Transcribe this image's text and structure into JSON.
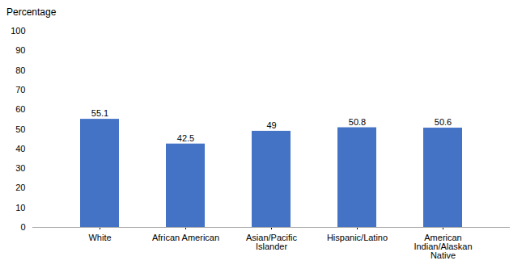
{
  "chart_data": {
    "type": "bar",
    "ylabel": "Percentage",
    "categories": [
      "White",
      "African American",
      "Asian/Pacific\nIslander",
      "Hispanic/Latino",
      "American\nIndian/Alaskan\nNative"
    ],
    "values": [
      55.1,
      42.5,
      49.0,
      50.8,
      50.6
    ],
    "color": "#4472C4",
    "ylim": [
      0,
      100
    ],
    "yticks": [
      0,
      10,
      20,
      30,
      40,
      50,
      60,
      70,
      80,
      90,
      100
    ],
    "grid": false,
    "data_labels": true
  }
}
